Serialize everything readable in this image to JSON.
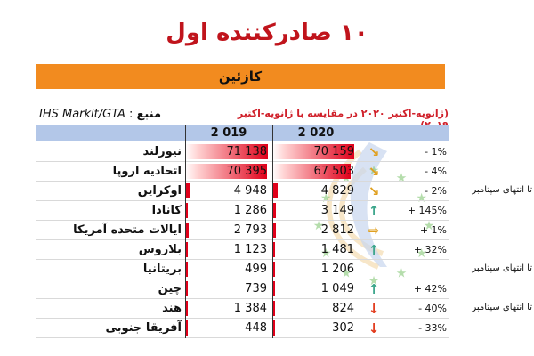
{
  "title": "۱۰ صادرکننده اول",
  "band_title": "کازئین",
  "source_label": "منبع",
  "source_text": "IHS Markit/GTA",
  "period_note": "(ژانویه-اکتبر ۲۰۲۰ در مقایسه با ژانویه-اکتبر ۲۰۱۹)",
  "colors": {
    "title": "#c0141c",
    "band": "#f28b1f",
    "header": "#b3c7e8",
    "bar_strong": "#e0001a",
    "arrow_up": "#3aa58a",
    "arrow_down": "#e23a1c",
    "arrow_diag": "#e0a020"
  },
  "chart_data": {
    "type": "table",
    "columns": [
      "2 019",
      "2 020"
    ],
    "rows": [
      {
        "country": "نیوزلند",
        "v2019": "71 138",
        "v2020": "70 159",
        "change": "- 1%",
        "trend": "down-slight",
        "note": ""
      },
      {
        "country": "اتحادیه اروپا",
        "v2019": "70 395",
        "v2020": "67 503",
        "change": "- 4%",
        "trend": "down-slight",
        "note": ""
      },
      {
        "country": "اوکراین",
        "v2019": "4 948",
        "v2020": "4 829",
        "change": "- 2%",
        "trend": "down-slight",
        "note": "تا انتهای سپتامبر"
      },
      {
        "country": "کانادا",
        "v2019": "1 286",
        "v2020": "3 149",
        "change": "+ 145%",
        "trend": "up",
        "note": ""
      },
      {
        "country": "ایالات متحده آمریکا",
        "v2019": "2 793",
        "v2020": "2 812",
        "change": "+ 1%",
        "trend": "flat",
        "note": ""
      },
      {
        "country": "بلاروس",
        "v2019": "1 123",
        "v2020": "1 481",
        "change": "+ 32%",
        "trend": "up",
        "note": ""
      },
      {
        "country": "بریتانیا",
        "v2019": "499",
        "v2020": "1 206",
        "change": "",
        "trend": "none",
        "note": "تا انتهای سپتامبر"
      },
      {
        "country": "چین",
        "v2019": "739",
        "v2020": "1 049",
        "change": "+ 42%",
        "trend": "up",
        "note": ""
      },
      {
        "country": "هند",
        "v2019": "1 384",
        "v2020": "824",
        "change": "- 40%",
        "trend": "down",
        "note": "تا انتهای سپتامبر"
      },
      {
        "country": "آفریقا جنوبی",
        "v2019": "448",
        "v2020": "302",
        "change": "- 33%",
        "trend": "down",
        "note": ""
      }
    ],
    "bar_values_2019": [
      71138,
      70395,
      4948,
      1286,
      2793,
      1123,
      499,
      739,
      1384,
      448
    ],
    "bar_values_2020": [
      70159,
      67503,
      4829,
      3149,
      2812,
      1481,
      1206,
      1049,
      824,
      302
    ]
  }
}
